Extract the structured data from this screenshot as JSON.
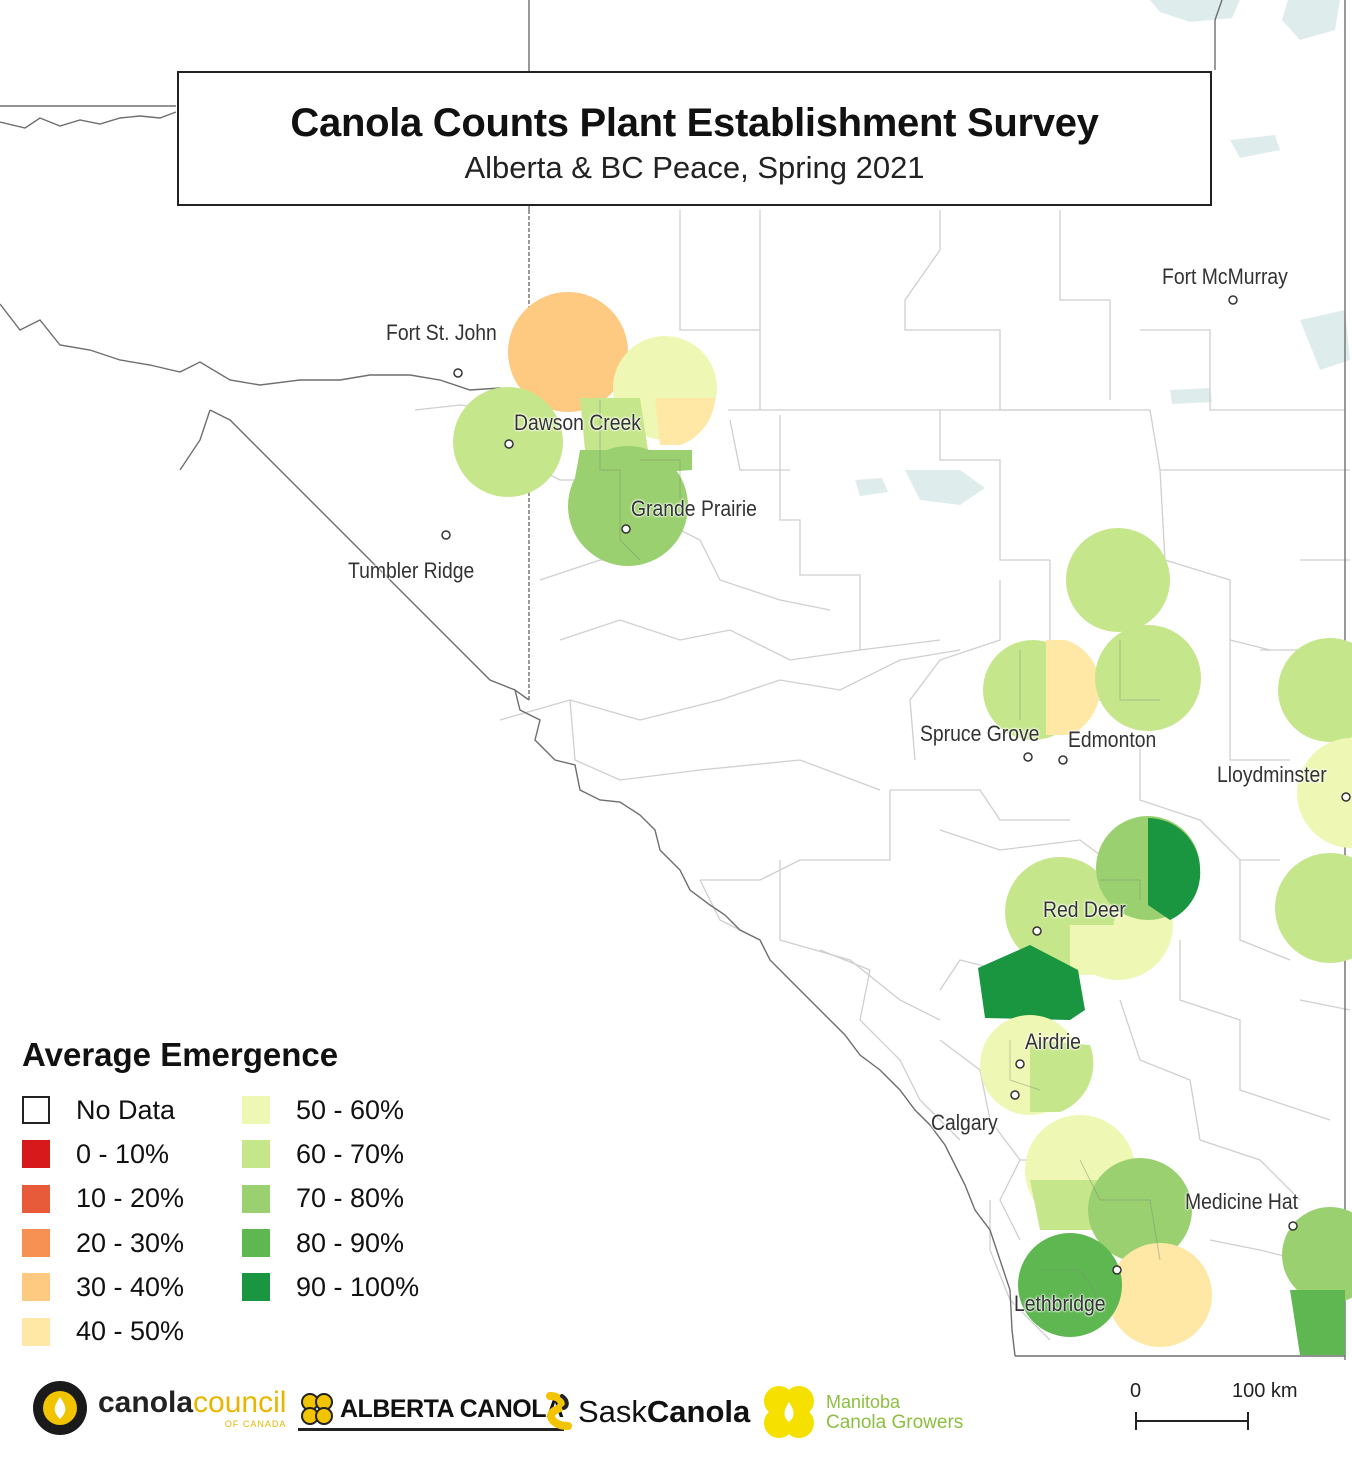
{
  "title": "Canola Counts Plant Establishment Survey",
  "subtitle": "Alberta & BC Peace, Spring 2021",
  "cities": [
    {
      "name": "Fort McMurray",
      "key": "fort-mcmurray"
    },
    {
      "name": "Fort St. John",
      "key": "fort-st-john"
    },
    {
      "name": "Dawson Creek",
      "key": "dawson-creek"
    },
    {
      "name": "Grande Prairie",
      "key": "grande-prairie"
    },
    {
      "name": "Tumbler Ridge",
      "key": "tumbler-ridge"
    },
    {
      "name": "Spruce Grove",
      "key": "spruce-grove"
    },
    {
      "name": "Edmonton",
      "key": "edmonton"
    },
    {
      "name": "Lloydminster",
      "key": "lloydminster"
    },
    {
      "name": "Red Deer",
      "key": "red-deer"
    },
    {
      "name": "Airdrie",
      "key": "airdrie"
    },
    {
      "name": "Calgary",
      "key": "calgary"
    },
    {
      "name": "Medicine Hat",
      "key": "medicine-hat"
    },
    {
      "name": "Lethbridge",
      "key": "lethbridge"
    }
  ],
  "legend": {
    "title": "Average Emergence",
    "items": [
      {
        "label": "No Data",
        "color": "#ffffff"
      },
      {
        "label": "0 - 10%",
        "color": "#d7191c"
      },
      {
        "label": "10 - 20%",
        "color": "#e85b3a"
      },
      {
        "label": "20 - 30%",
        "color": "#f69053"
      },
      {
        "label": "30 - 40%",
        "color": "#fec980"
      },
      {
        "label": "40 - 50%",
        "color": "#ffe8a5"
      },
      {
        "label": "50 - 60%",
        "color": "#eef7b4"
      },
      {
        "label": "60 - 70%",
        "color": "#c6e68c"
      },
      {
        "label": "70 - 80%",
        "color": "#9bd070"
      },
      {
        "label": "80 - 90%",
        "color": "#5fb752"
      },
      {
        "label": "90 - 100%",
        "color": "#1a9641"
      }
    ]
  },
  "logos": {
    "ccc_main": "canola",
    "ccc_accent": "council",
    "ccc_sub": "OF CANADA",
    "alberta": "ALBERTA CANOLA",
    "sask_a": "Sask",
    "sask_b": "Canola",
    "mb_line1": "Manitoba",
    "mb_line2": "Canola Growers"
  },
  "scale": {
    "start": "0",
    "end": "100 km"
  },
  "colors": {
    "water": "#dfecec",
    "boundary": "#cfcfcf",
    "border": "#6e6e6e",
    "land": "#ffffff"
  }
}
